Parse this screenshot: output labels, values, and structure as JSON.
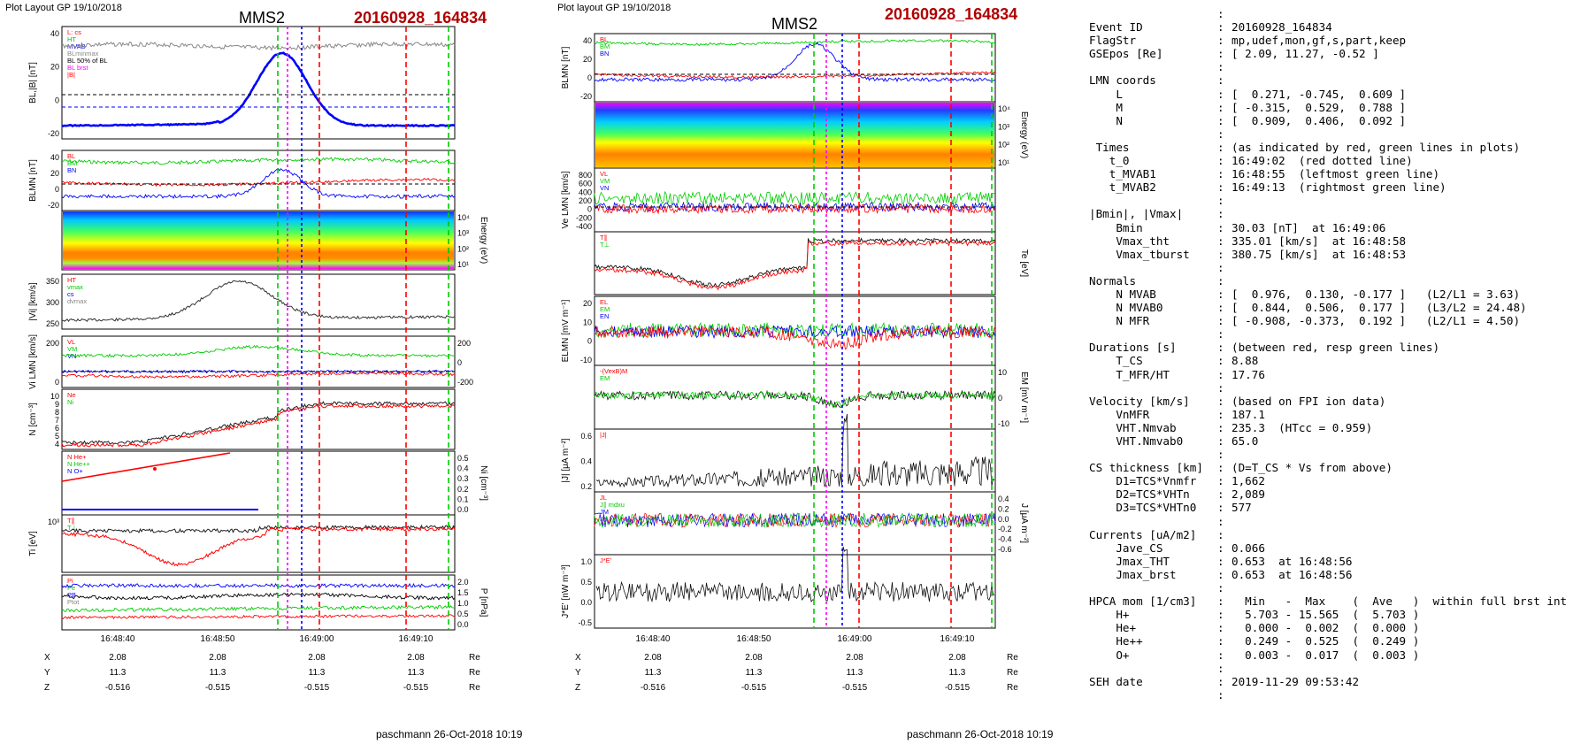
{
  "left_figure": {
    "header_left": "Plot Layout GP 19/10/2018",
    "spacecraft": "MMS2",
    "event": "20160928_164834",
    "footer": "paschmann 26-Oct-2018 10:19",
    "time_ticks": [
      "16:48:40",
      "16:48:50",
      "16:49:00",
      "16:49:10"
    ],
    "pos_table": {
      "rows": [
        {
          "label": "X",
          "values": [
            "2.08",
            "2.08",
            "2.08",
            "2.08"
          ],
          "unit": "Re"
        },
        {
          "label": "Y",
          "values": [
            "11.3",
            "11.3",
            "11.3",
            "11.3"
          ],
          "unit": "Re"
        },
        {
          "label": "Z",
          "values": [
            "-0.516",
            "-0.515",
            "-0.515",
            "-0.515"
          ],
          "unit": "Re"
        }
      ]
    },
    "panels": [
      {
        "ylabel": "BL,|B| [nT]",
        "ticks": [
          "40",
          "20",
          "0",
          "-20"
        ],
        "legend": [
          "L: cs",
          "HT",
          "MVAB",
          "BLminmax",
          "BL 50% of BL",
          "BL brst",
          "|B|"
        ]
      },
      {
        "ylabel": "BLMN [nT]",
        "ticks": [
          "40",
          "20",
          "0",
          "-20"
        ],
        "legend": [
          "BL",
          "BM",
          "BN"
        ]
      },
      {
        "ylabel": "Energy (eV)",
        "ticks_right": [
          "10⁴",
          "10³",
          "10²",
          "10¹"
        ]
      },
      {
        "ylabel": "|Vi| [km/s]",
        "ticks": [
          "350",
          "300",
          "250"
        ],
        "legend": [
          "HT",
          "vmax",
          "cs",
          "dvmax"
        ]
      },
      {
        "ylabel": "Vi LMN [km/s]",
        "ticks": [
          "200",
          "0"
        ],
        "ticks_right": [
          "200",
          "0",
          "-200"
        ],
        "legend": [
          "VL",
          "VM",
          "VN"
        ]
      },
      {
        "ylabel": "N [cm⁻³]",
        "ticks": [
          "10",
          "9",
          "8",
          "7",
          "6",
          "5",
          "4"
        ],
        "legend": [
          "Ne",
          "Ni"
        ]
      },
      {
        "ylabel": "Ni [cm⁻³]",
        "ticks_right": [
          "0.5",
          "0.4",
          "0.3",
          "0.2",
          "0.1",
          "0.0"
        ],
        "legend": [
          "N He+",
          "N He++",
          "N O+"
        ]
      },
      {
        "ylabel": "Ti [eV]",
        "ticks": [
          "10³"
        ],
        "legend": [
          "T∥",
          "T⊥"
        ]
      },
      {
        "ylabel": "P [nPa]",
        "ticks_right": [
          "2.0",
          "1.5",
          "1.0",
          "0.5",
          "0.0"
        ],
        "legend": [
          "Pi",
          "Pe",
          "PB",
          "Ptot"
        ]
      }
    ]
  },
  "right_figure": {
    "header_left": "Plot layout GP 19/10/2018",
    "spacecraft": "MMS2",
    "event": "20160928_164834",
    "footer": "paschmann 26-Oct-2018 10:19",
    "time_ticks": [
      "16:48:40",
      "16:48:50",
      "16:49:00",
      "16:49:10"
    ],
    "pos_table": {
      "rows": [
        {
          "label": "X",
          "values": [
            "2.08",
            "2.08",
            "2.08",
            "2.08"
          ],
          "unit": "Re"
        },
        {
          "label": "Y",
          "values": [
            "11.3",
            "11.3",
            "11.3",
            "11.3"
          ],
          "unit": "Re"
        },
        {
          "label": "Z",
          "values": [
            "-0.516",
            "-0.515",
            "-0.515",
            "-0.515"
          ],
          "unit": "Re"
        }
      ]
    },
    "panels": [
      {
        "ylabel": "BLMN [nT]",
        "ticks": [
          "40",
          "20",
          "0",
          "-20"
        ],
        "legend": [
          "BL",
          "BM",
          "BN"
        ]
      },
      {
        "ylabel": "Energy (eV)",
        "ticks_right": [
          "10⁴",
          "10³",
          "10²",
          "10¹"
        ]
      },
      {
        "ylabel": "Ve LMN [km/s]",
        "ticks": [
          "800",
          "600",
          "400",
          "200",
          "0",
          "-200",
          "-400"
        ],
        "legend": [
          "VL",
          "VM",
          "VN"
        ]
      },
      {
        "ylabel": "Te [eV]",
        "ticks_right": [],
        "legend": [
          "T∥",
          "T⊥"
        ]
      },
      {
        "ylabel": "ELMN [mV m⁻¹]",
        "ticks": [
          "20",
          "10",
          "0",
          "-10"
        ],
        "legend": [
          "EL",
          "EM",
          "EN"
        ]
      },
      {
        "ylabel": "EM [mV m⁻¹]",
        "ticks_right": [
          "10",
          "0",
          "-10"
        ],
        "legend": [
          "-(VexB)M",
          "EM"
        ]
      },
      {
        "ylabel": "|J| [μA m⁻²]",
        "ticks": [
          "0.6",
          "0.4",
          "0.2"
        ],
        "legend": [
          "|J|"
        ]
      },
      {
        "ylabel": "J [μA m⁻²]",
        "ticks_right": [
          "0.4",
          "0.2",
          "0.0",
          "-0.2",
          "-0.4",
          "-0.6"
        ],
        "legend": [
          "JL",
          "J∥ mdxu",
          "JM",
          "JN"
        ]
      },
      {
        "ylabel": "J*E' [nW m⁻³]",
        "ticks": [
          "1.0",
          "0.5",
          "0.0",
          "-0.5"
        ],
        "legend": [
          "J*E'"
        ]
      }
    ]
  },
  "info": {
    "rows": [
      {
        "label": "Event ID",
        "value": "20160928_164834"
      },
      {
        "label": "FlagStr",
        "value": "mp,udef,mon,gf,s,part,keep"
      },
      {
        "label": "GSEpos [Re]",
        "value": "[ 2.09, 11.27, -0.52 ]"
      },
      {
        "label": "",
        "value": ""
      },
      {
        "label": "LMN coords",
        "value": ""
      },
      {
        "label": "    L",
        "value": "[  0.271, -0.745,  0.609 ]"
      },
      {
        "label": "    M",
        "value": "[ -0.315,  0.529,  0.788 ]"
      },
      {
        "label": "    N",
        "value": "[  0.909,  0.406,  0.092 ]"
      },
      {
        "label": "",
        "value": ""
      },
      {
        "label": " Times",
        "value": "(as indicated by red, green lines in plots)"
      },
      {
        "label": "   t_0",
        "value": "16:49:02  (red dotted line)"
      },
      {
        "label": "   t_MVAB1",
        "value": "16:48:55  (leftmost green line)"
      },
      {
        "label": "   t_MVAB2",
        "value": "16:49:13  (rightmost green line)"
      },
      {
        "label": "",
        "value": ""
      },
      {
        "label": "|Bmin|, |Vmax|",
        "value": ""
      },
      {
        "label": "    Bmin",
        "value": "30.03 [nT]  at 16:49:06"
      },
      {
        "label": "    Vmax_tht",
        "value": "335.01 [km/s]  at 16:48:58"
      },
      {
        "label": "    Vmax_tburst",
        "value": "380.75 [km/s]  at 16:48:53"
      },
      {
        "label": "",
        "value": ""
      },
      {
        "label": "Normals",
        "value": ""
      },
      {
        "label": "    N MVAB",
        "value": "[  0.976,  0.130, -0.177 ]   (L2/L1 = 3.63)"
      },
      {
        "label": "    N MVAB0",
        "value": "[  0.844,  0.506,  0.177 ]   (L3/L2 = 24.48)"
      },
      {
        "label": "    N MFR",
        "value": "[ -0.908, -0.373,  0.192 ]   (L2/L1 = 4.50)"
      },
      {
        "label": "",
        "value": ""
      },
      {
        "label": "Durations [s]",
        "value": "(between red, resp green lines)"
      },
      {
        "label": "    T_CS",
        "value": "8.88"
      },
      {
        "label": "    T_MFR/HT",
        "value": "17.76"
      },
      {
        "label": "",
        "value": ""
      },
      {
        "label": "Velocity [km/s]",
        "value": "(based on FPI ion data)"
      },
      {
        "label": "    VnMFR",
        "value": "187.1"
      },
      {
        "label": "    VHT.Nmvab",
        "value": "235.3  (HTcc = 0.959)"
      },
      {
        "label": "    VHT.Nmvab0",
        "value": "65.0"
      },
      {
        "label": "",
        "value": ""
      },
      {
        "label": "CS thickness [km]",
        "value": "(D=T_CS * Vs from above)"
      },
      {
        "label": "    D1=TCS*Vnmfr",
        "value": "1,662"
      },
      {
        "label": "    D2=TCS*VHTn",
        "value": "2,089"
      },
      {
        "label": "    D3=TCS*VHTn0",
        "value": "577"
      },
      {
        "label": "",
        "value": ""
      },
      {
        "label": "Currents [uA/m2]",
        "value": ""
      },
      {
        "label": "    Jave_CS",
        "value": "0.066"
      },
      {
        "label": "    Jmax_THT",
        "value": "0.653  at 16:48:56"
      },
      {
        "label": "    Jmax_brst",
        "value": "0.653  at 16:48:56"
      },
      {
        "label": "",
        "value": ""
      },
      {
        "label": "HPCA mom [1/cm3]",
        "value": "  Min   -  Max    (  Ave   )  within full brst int"
      },
      {
        "label": "    H+",
        "value": "  5.703 - 15.565  (  5.703 )"
      },
      {
        "label": "    He+",
        "value": "  0.000 -  0.002  (  0.000 )"
      },
      {
        "label": "    He++",
        "value": "  0.249 -  0.525  (  0.249 )"
      },
      {
        "label": "    O+",
        "value": "  0.003 -  0.017  (  0.003 )"
      },
      {
        "label": "",
        "value": ""
      },
      {
        "label": "SEH date",
        "value": "2019-11-29 09:53:42"
      }
    ]
  },
  "colors": {
    "red": "#ff0000",
    "green": "#00cc00",
    "blue": "#0000ff",
    "black": "#000000",
    "magenta": "#ff00ff",
    "title_red": "#b00000",
    "gray": "#888888",
    "cyan": "#00bbbb"
  }
}
